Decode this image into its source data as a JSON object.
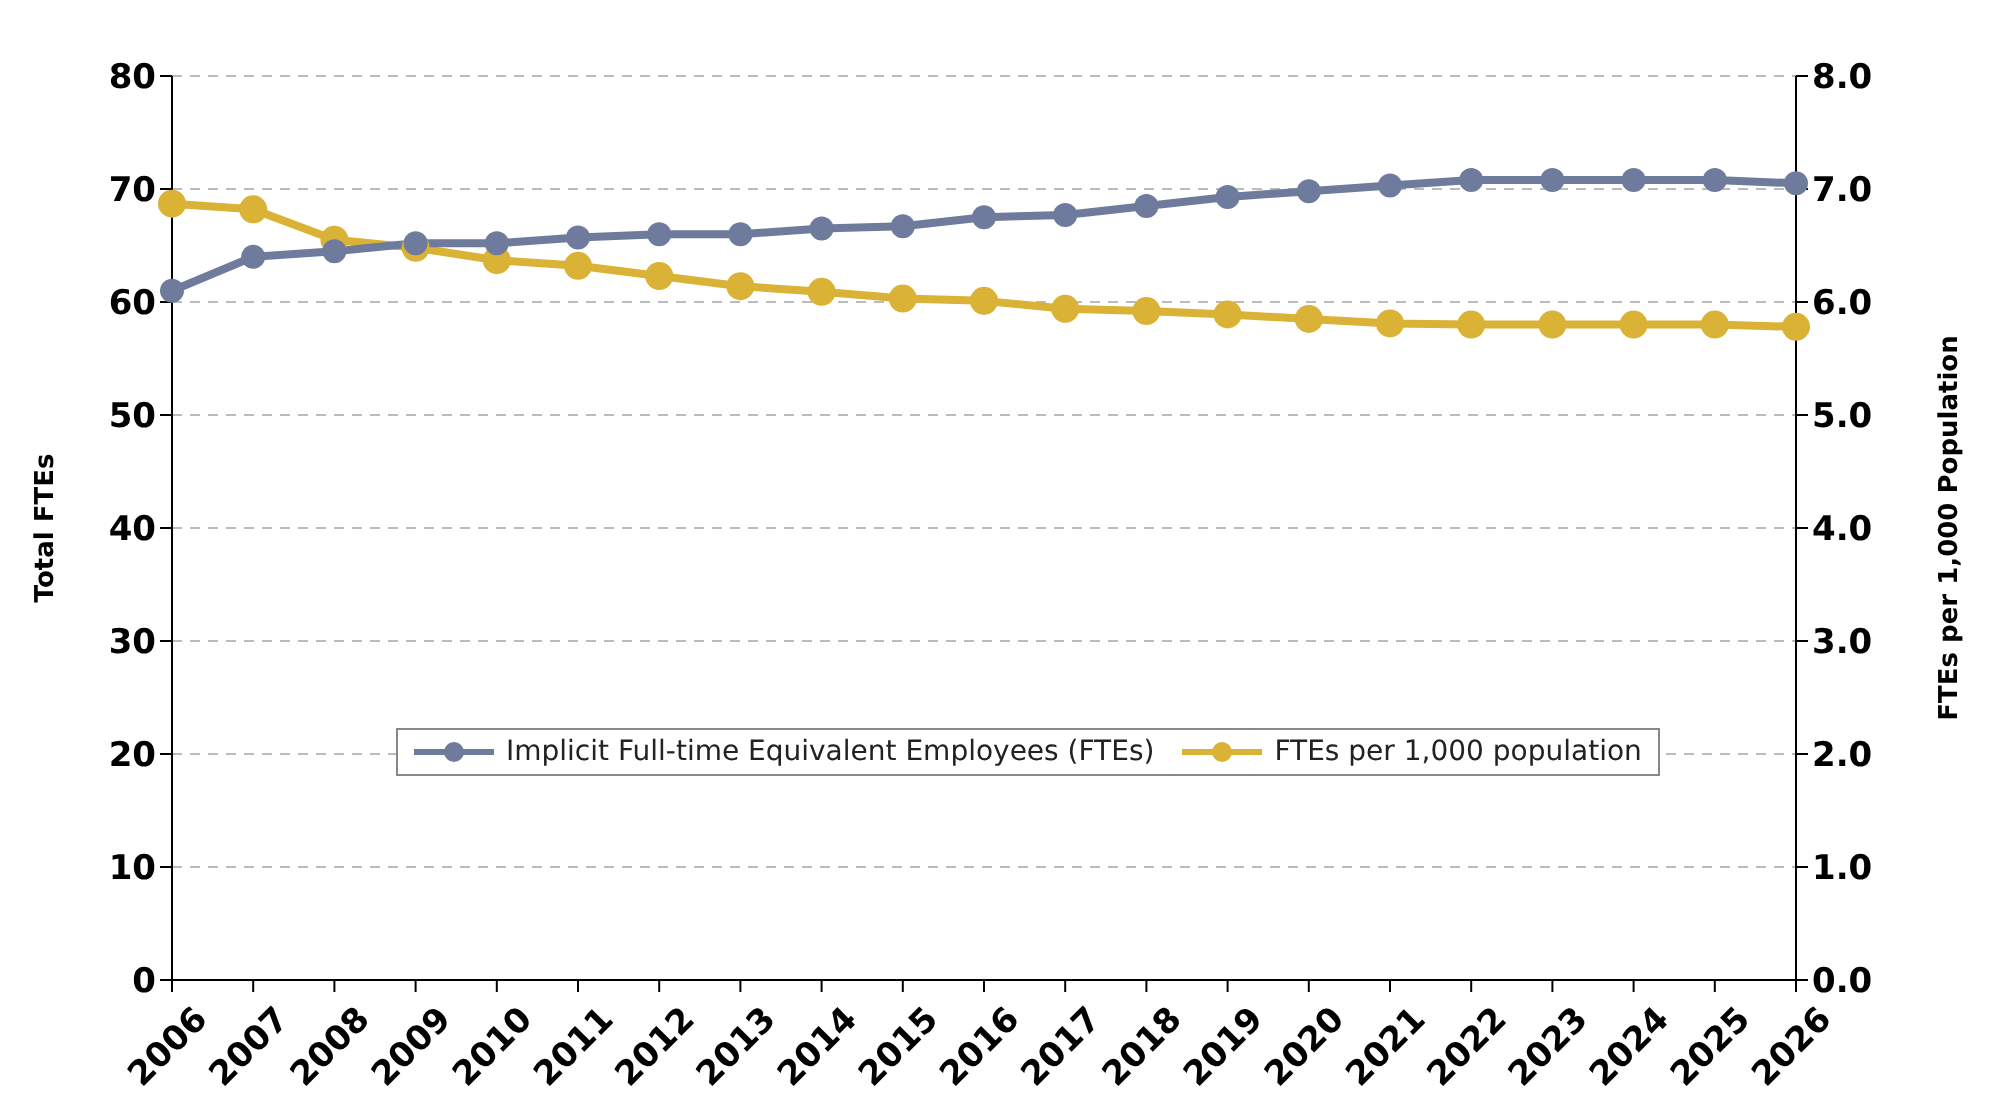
{
  "chart_data": {
    "type": "line",
    "ylabel": "Total FTEs",
    "y2label": "FTEs per 1,000 Population",
    "categories": [
      "2006",
      "2007",
      "2008",
      "2009",
      "2010",
      "2011",
      "2012",
      "2013",
      "2014",
      "2015",
      "2016",
      "2017",
      "2018",
      "2019",
      "2020",
      "2021",
      "2022",
      "2023",
      "2024",
      "2025",
      "2026"
    ],
    "series": [
      {
        "name": "Implicit Full-time Equivalent Employees (FTEs)",
        "color": "#6e7b9c",
        "values": [
          61,
          64,
          64.5,
          65.2,
          65.2,
          65.7,
          66,
          66,
          66.5,
          66.7,
          67.5,
          67.7,
          68.5,
          69.3,
          69.8,
          70.3,
          70.8,
          70.8,
          70.8,
          70.8,
          70.5
        ]
      },
      {
        "name": "FTEs per 1,000 population",
        "color": "#dab236",
        "axis": "y2",
        "values": [
          6.87,
          6.82,
          6.55,
          6.48,
          6.37,
          6.32,
          6.23,
          6.14,
          6.09,
          6.03,
          6.01,
          5.94,
          5.92,
          5.89,
          5.85,
          5.81,
          5.8,
          5.8,
          5.8,
          5.8,
          5.78
        ]
      }
    ],
    "ylim": [
      0,
      80
    ],
    "yticks": [
      0,
      10,
      20,
      30,
      40,
      50,
      60,
      70,
      80
    ],
    "y2lim": [
      0,
      8
    ],
    "y2ticks": [
      {
        "value": 0,
        "label": "0.0"
      },
      {
        "value": 1,
        "label": "1.0"
      },
      {
        "value": 2,
        "label": "2.0"
      },
      {
        "value": 3,
        "label": "3.0"
      },
      {
        "value": 4,
        "label": "4.0"
      },
      {
        "value": 5,
        "label": "5.0"
      },
      {
        "value": 6,
        "label": "6.0"
      },
      {
        "value": 7,
        "label": "7.0"
      },
      {
        "value": 8,
        "label": "8.0"
      }
    ],
    "grid": "y",
    "legend": "center",
    "marker": "circle",
    "line_style": "solid"
  }
}
